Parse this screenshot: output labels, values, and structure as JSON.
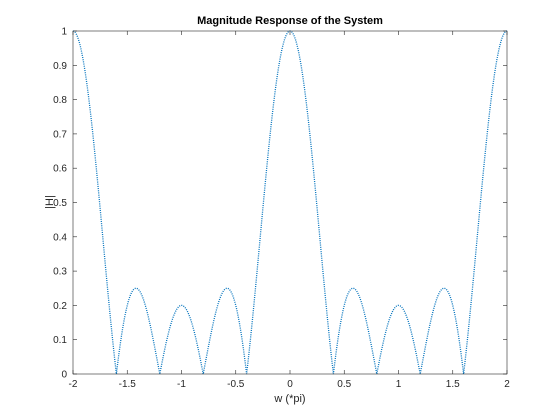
{
  "chart_data": {
    "type": "line",
    "title": "Magnitude Response of the System",
    "xlabel": "w (*pi)",
    "ylabel": "|H|",
    "xlim": [
      -2,
      2
    ],
    "ylim": [
      0,
      1
    ],
    "xticks": [
      -2,
      -1.5,
      -1,
      -0.5,
      0,
      0.5,
      1,
      1.5,
      2
    ],
    "xtick_labels": [
      "-2",
      "-1.5",
      "-1",
      "-0.5",
      "0",
      "0.5",
      "1",
      "1.5",
      "2"
    ],
    "yticks": [
      0,
      0.1,
      0.2,
      0.3,
      0.4,
      0.5,
      0.6,
      0.7,
      0.8,
      0.9,
      1
    ],
    "ytick_labels": [
      "0",
      "0.1",
      "0.2",
      "0.3",
      "0.4",
      "0.5",
      "0.6",
      "0.7",
      "0.8",
      "0.9",
      "1"
    ],
    "grid": false,
    "line_style": "dotted",
    "series_color": "#0072BD",
    "series": [
      {
        "function": "abs(sin(5*pi*w/2) / (5*sin(pi*w/2)))",
        "x_range": [
          -2,
          2
        ],
        "x": [
          -2,
          -1.8,
          -1.6,
          -1.4,
          -1.2,
          -1,
          -0.8,
          -0.6,
          -0.4,
          -0.2,
          0,
          0.2,
          0.4,
          0.6,
          0.8,
          1,
          1.2,
          1.4,
          1.6,
          1.8,
          2
        ],
        "values": [
          1,
          0.647,
          0,
          0.25,
          0,
          0.2,
          0,
          0.25,
          0,
          0.647,
          1,
          0.647,
          0,
          0.25,
          0,
          0.2,
          0,
          0.25,
          0,
          0.647,
          1
        ]
      }
    ]
  }
}
